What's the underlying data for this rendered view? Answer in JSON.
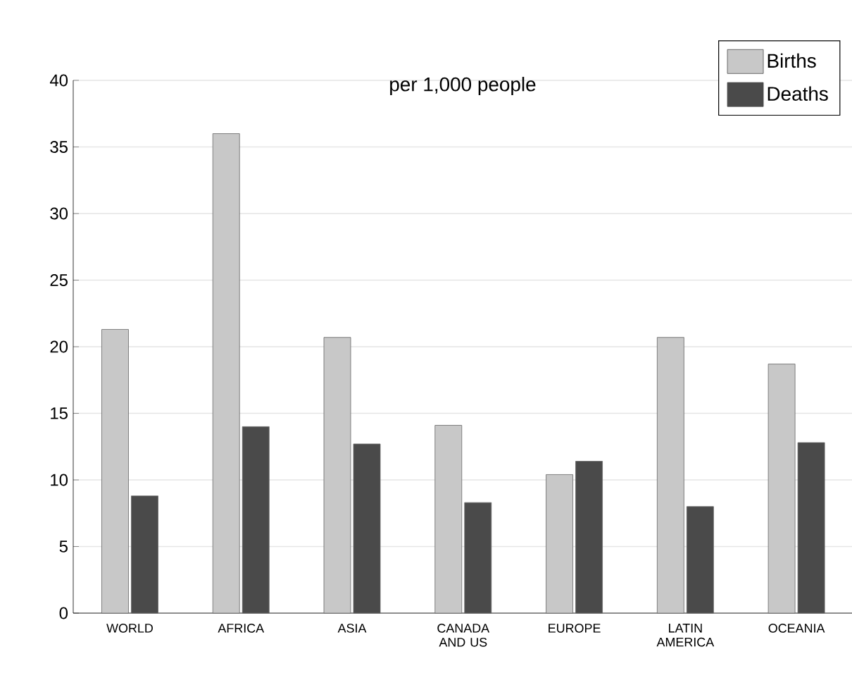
{
  "chart_data": {
    "type": "bar",
    "title": "per 1,000 people",
    "categories": [
      "WORLD",
      "AFRICA",
      "ASIA",
      "CANADA AND US",
      "EUROPE",
      "LATIN AMERICA",
      "OCEANIA"
    ],
    "series": [
      {
        "name": "Births",
        "color": "#c8c8c8",
        "values": [
          21.3,
          36.0,
          20.7,
          14.1,
          10.4,
          20.7,
          18.7
        ]
      },
      {
        "name": "Deaths",
        "color": "#4a4a4a",
        "values": [
          8.8,
          14.0,
          12.7,
          8.3,
          11.4,
          8.0,
          12.8
        ]
      }
    ],
    "ylim": [
      0,
      40
    ],
    "yticks": [
      0,
      5,
      10,
      15,
      20,
      25,
      30,
      35,
      40
    ],
    "grid": "y",
    "legend": "top right"
  }
}
